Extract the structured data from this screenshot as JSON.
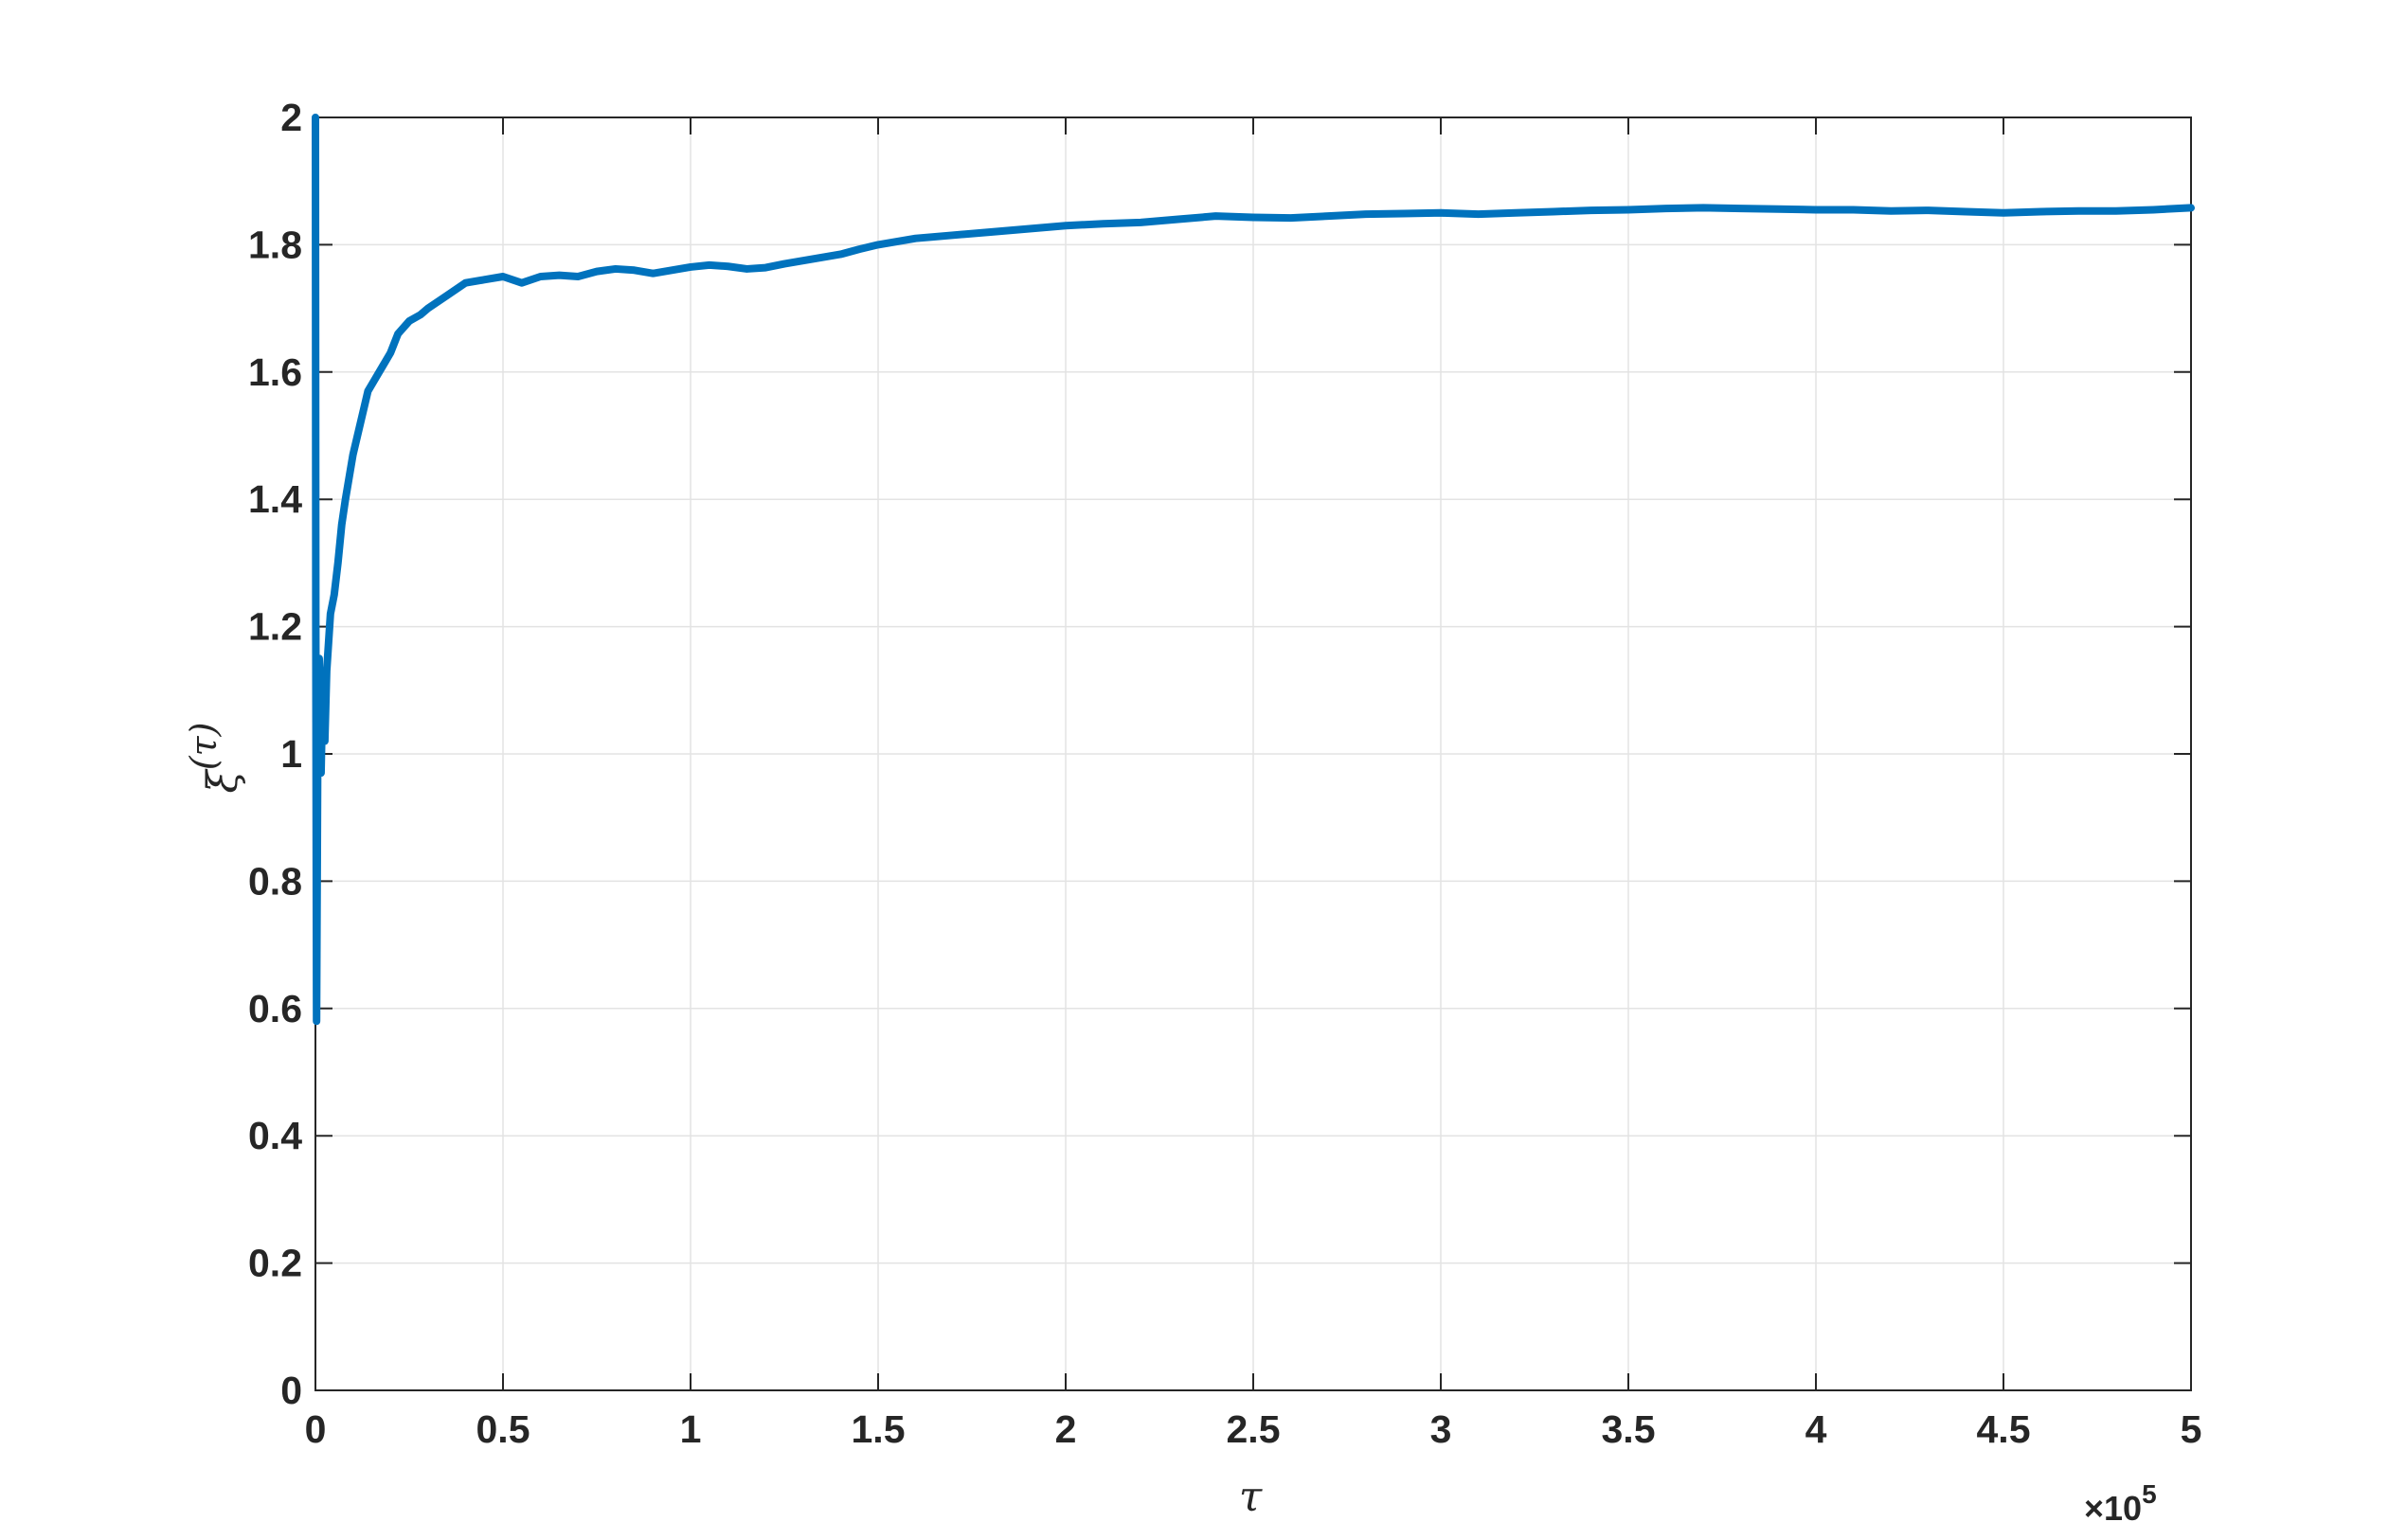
{
  "chart_data": {
    "type": "line",
    "xlabel": "τ",
    "ylabel_base": "ξ",
    "ylabel_sup": "(τ)",
    "x_exponent": {
      "times": "×10",
      "power": "5"
    },
    "xlim": [
      0,
      500000
    ],
    "ylim": [
      0,
      2
    ],
    "grid": true,
    "x_ticks": [
      0,
      50000,
      100000,
      150000,
      200000,
      250000,
      300000,
      350000,
      400000,
      450000,
      500000
    ],
    "x_tick_labels": [
      "0",
      "0.5",
      "1",
      "1.5",
      "2",
      "2.5",
      "3",
      "3.5",
      "4",
      "4.5",
      "5"
    ],
    "y_ticks": [
      0,
      0.2,
      0.4,
      0.6,
      0.8,
      1.0,
      1.2,
      1.4,
      1.6,
      1.8,
      2.0
    ],
    "y_tick_labels": [
      "0",
      "0.2",
      "0.4",
      "0.6",
      "0.8",
      "1",
      "1.2",
      "1.4",
      "1.6",
      "1.8",
      "2"
    ],
    "series": [
      {
        "color": "#0072BD",
        "x": [
          0,
          100,
          300,
          600,
          1000,
          1500,
          2000,
          2500,
          3000,
          4000,
          5000,
          6000,
          7000,
          8000,
          10000,
          12000,
          14000,
          16000,
          18000,
          20000,
          22000,
          25000,
          28000,
          30000,
          35000,
          40000,
          45000,
          50000,
          55000,
          60000,
          65000,
          70000,
          75000,
          80000,
          85000,
          90000,
          95000,
          100000,
          105000,
          110000,
          115000,
          120000,
          125000,
          130000,
          135000,
          140000,
          145000,
          150000,
          155000,
          160000,
          170000,
          180000,
          190000,
          200000,
          210000,
          220000,
          230000,
          240000,
          250000,
          260000,
          270000,
          280000,
          290000,
          300000,
          310000,
          320000,
          330000,
          340000,
          350000,
          360000,
          370000,
          380000,
          390000,
          400000,
          410000,
          420000,
          430000,
          440000,
          450000,
          460000,
          470000,
          480000,
          490000,
          500000
        ],
        "y": [
          2.0,
          1.2,
          0.58,
          0.98,
          1.15,
          0.97,
          1.12,
          1.02,
          1.13,
          1.22,
          1.25,
          1.3,
          1.36,
          1.4,
          1.47,
          1.52,
          1.57,
          1.59,
          1.61,
          1.63,
          1.66,
          1.68,
          1.69,
          1.7,
          1.72,
          1.74,
          1.745,
          1.75,
          1.74,
          1.75,
          1.752,
          1.75,
          1.758,
          1.762,
          1.76,
          1.755,
          1.76,
          1.765,
          1.768,
          1.766,
          1.762,
          1.764,
          1.77,
          1.775,
          1.78,
          1.785,
          1.793,
          1.8,
          1.805,
          1.81,
          1.815,
          1.82,
          1.825,
          1.83,
          1.833,
          1.835,
          1.84,
          1.845,
          1.843,
          1.842,
          1.845,
          1.848,
          1.849,
          1.85,
          1.848,
          1.85,
          1.852,
          1.854,
          1.855,
          1.857,
          1.858,
          1.857,
          1.856,
          1.855,
          1.855,
          1.853,
          1.854,
          1.852,
          1.85,
          1.852,
          1.853,
          1.853,
          1.855,
          1.858
        ]
      }
    ]
  }
}
